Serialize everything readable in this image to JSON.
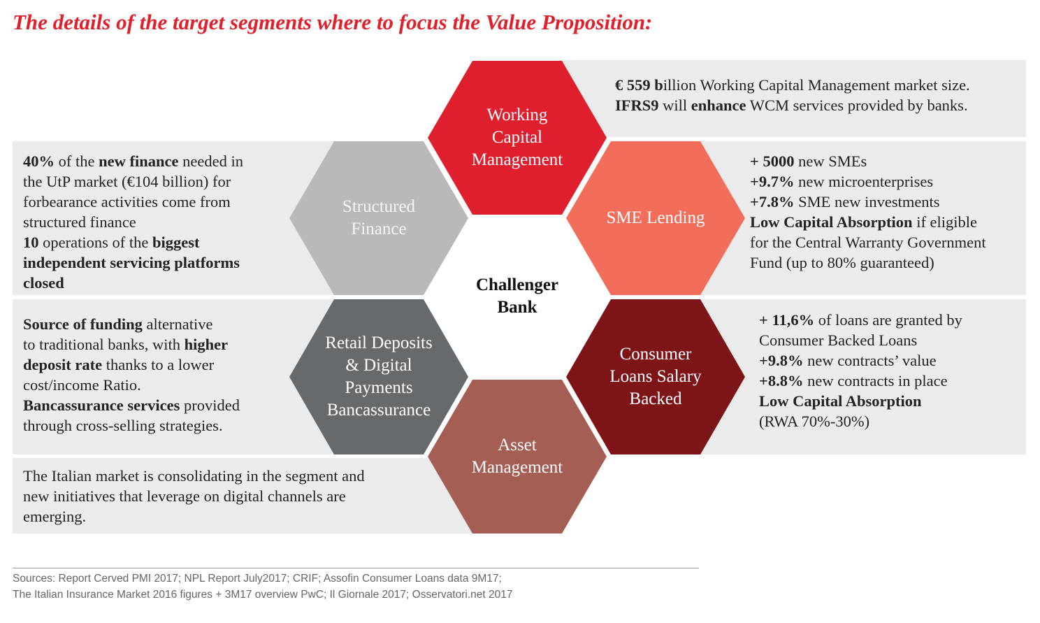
{
  "title": "The details of the target segments where to focus the Value Proposition:",
  "center": [
    "Challenger",
    "Bank"
  ],
  "hexagons": {
    "working_capital": {
      "lines": [
        "Working",
        "Capital",
        "Management"
      ],
      "color": "#e01f2e"
    },
    "sme_lending": {
      "lines": [
        "SME Lending"
      ],
      "color": "#f26e5a"
    },
    "consumer_loans": {
      "lines": [
        "Consumer",
        "Loans Salary",
        "Backed"
      ],
      "color": "#7d1518"
    },
    "asset_management": {
      "lines": [
        "Asset",
        "Management"
      ],
      "color": "#a45e53"
    },
    "retail_deposits": {
      "lines": [
        "Retail Deposits",
        "& Digital",
        "Payments",
        "Bancassurance"
      ],
      "color": "#666a6c"
    },
    "structured_finance": {
      "lines": [
        "Structured",
        "Finance"
      ],
      "color": "#b9b9b9"
    }
  },
  "panels": {
    "wcm": [
      [
        {
          "t": "€ 559 b",
          "b": true
        },
        {
          "t": "illion Working Capital Management market size.",
          "b": false
        }
      ],
      [
        {
          "t": "IFRS9",
          "b": true
        },
        {
          "t": " will ",
          "b": false
        },
        {
          "t": "enhance",
          "b": true
        },
        {
          "t": " WCM services provided by banks.",
          "b": false
        }
      ]
    ],
    "sme": [
      [
        {
          "t": "+ 5000",
          "b": true
        },
        {
          "t": " new SMEs",
          "b": false
        }
      ],
      [
        {
          "t": "+9.7%",
          "b": true
        },
        {
          "t": " new microenterprises",
          "b": false
        }
      ],
      [
        {
          "t": "+7.8%",
          "b": true
        },
        {
          "t": " SME new investments",
          "b": false
        }
      ],
      [
        {
          "t": "Low Capital Absorption",
          "b": true
        },
        {
          "t": " if eligible",
          "b": false
        }
      ],
      [
        {
          "t": "for the Central Warranty Government",
          "b": false
        }
      ],
      [
        {
          "t": "Fund (up to 80% guaranteed)",
          "b": false
        }
      ]
    ],
    "consumer": [
      [
        {
          "t": "+ 11,6%",
          "b": true
        },
        {
          "t": " of loans are granted by",
          "b": false
        }
      ],
      [
        {
          "t": "Consumer Backed Loans",
          "b": false
        }
      ],
      [
        {
          "t": "+9.8%",
          "b": true
        },
        {
          "t": " new contracts’ value",
          "b": false
        }
      ],
      [
        {
          "t": "+8.8%",
          "b": true
        },
        {
          "t": " new contracts in place",
          "b": false
        }
      ],
      [
        {
          "t": "Low Capital Absorption",
          "b": true
        }
      ],
      [
        {
          "t": "(RWA 70%-30%)",
          "b": false
        }
      ]
    ],
    "structured": [
      [
        {
          "t": "40%",
          "b": true
        },
        {
          "t": " of the ",
          "b": false
        },
        {
          "t": "new finance",
          "b": true
        },
        {
          "t": " needed in",
          "b": false
        }
      ],
      [
        {
          "t": "the UtP market (€104 billion) for",
          "b": false
        }
      ],
      [
        {
          "t": "forbearance activities come from",
          "b": false
        }
      ],
      [
        {
          "t": "structured finance",
          "b": false
        }
      ],
      [
        {
          "t": "10",
          "b": true
        },
        {
          "t": " operations of the ",
          "b": false
        },
        {
          "t": "biggest",
          "b": true
        }
      ],
      [
        {
          "t": "independent servicing platforms",
          "b": true
        }
      ],
      [
        {
          "t": "closed",
          "b": true
        }
      ]
    ],
    "retail": [
      [
        {
          "t": "Source of funding",
          "b": true
        },
        {
          "t": " alternative",
          "b": false
        }
      ],
      [
        {
          "t": "to traditional banks, with ",
          "b": false
        },
        {
          "t": "higher",
          "b": true
        }
      ],
      [
        {
          "t": "deposit rate",
          "b": true
        },
        {
          "t": " thanks to a lower",
          "b": false
        }
      ],
      [
        {
          "t": "cost/income Ratio.",
          "b": false
        }
      ],
      [
        {
          "t": "Bancassurance services",
          "b": true
        },
        {
          "t": " provided",
          "b": false
        }
      ],
      [
        {
          "t": "through cross-selling strategies.",
          "b": false
        }
      ]
    ],
    "asset": [
      [
        {
          "t": "The Italian market is consolidating in the segment and",
          "b": false
        }
      ],
      [
        {
          "t": "new initiatives that leverage on digital channels are",
          "b": false
        }
      ],
      [
        {
          "t": "emerging.",
          "b": false
        }
      ]
    ]
  },
  "sources": [
    "Sources: Report Cerved PMI 2017; NPL Report July2017; CRIF; Assofin Consumer Loans data 9M17;",
    "The Italian Insurance Market 2016 figures + 3M17 overview PwC; Il Giornale 2017; Osservatori.net 2017"
  ]
}
